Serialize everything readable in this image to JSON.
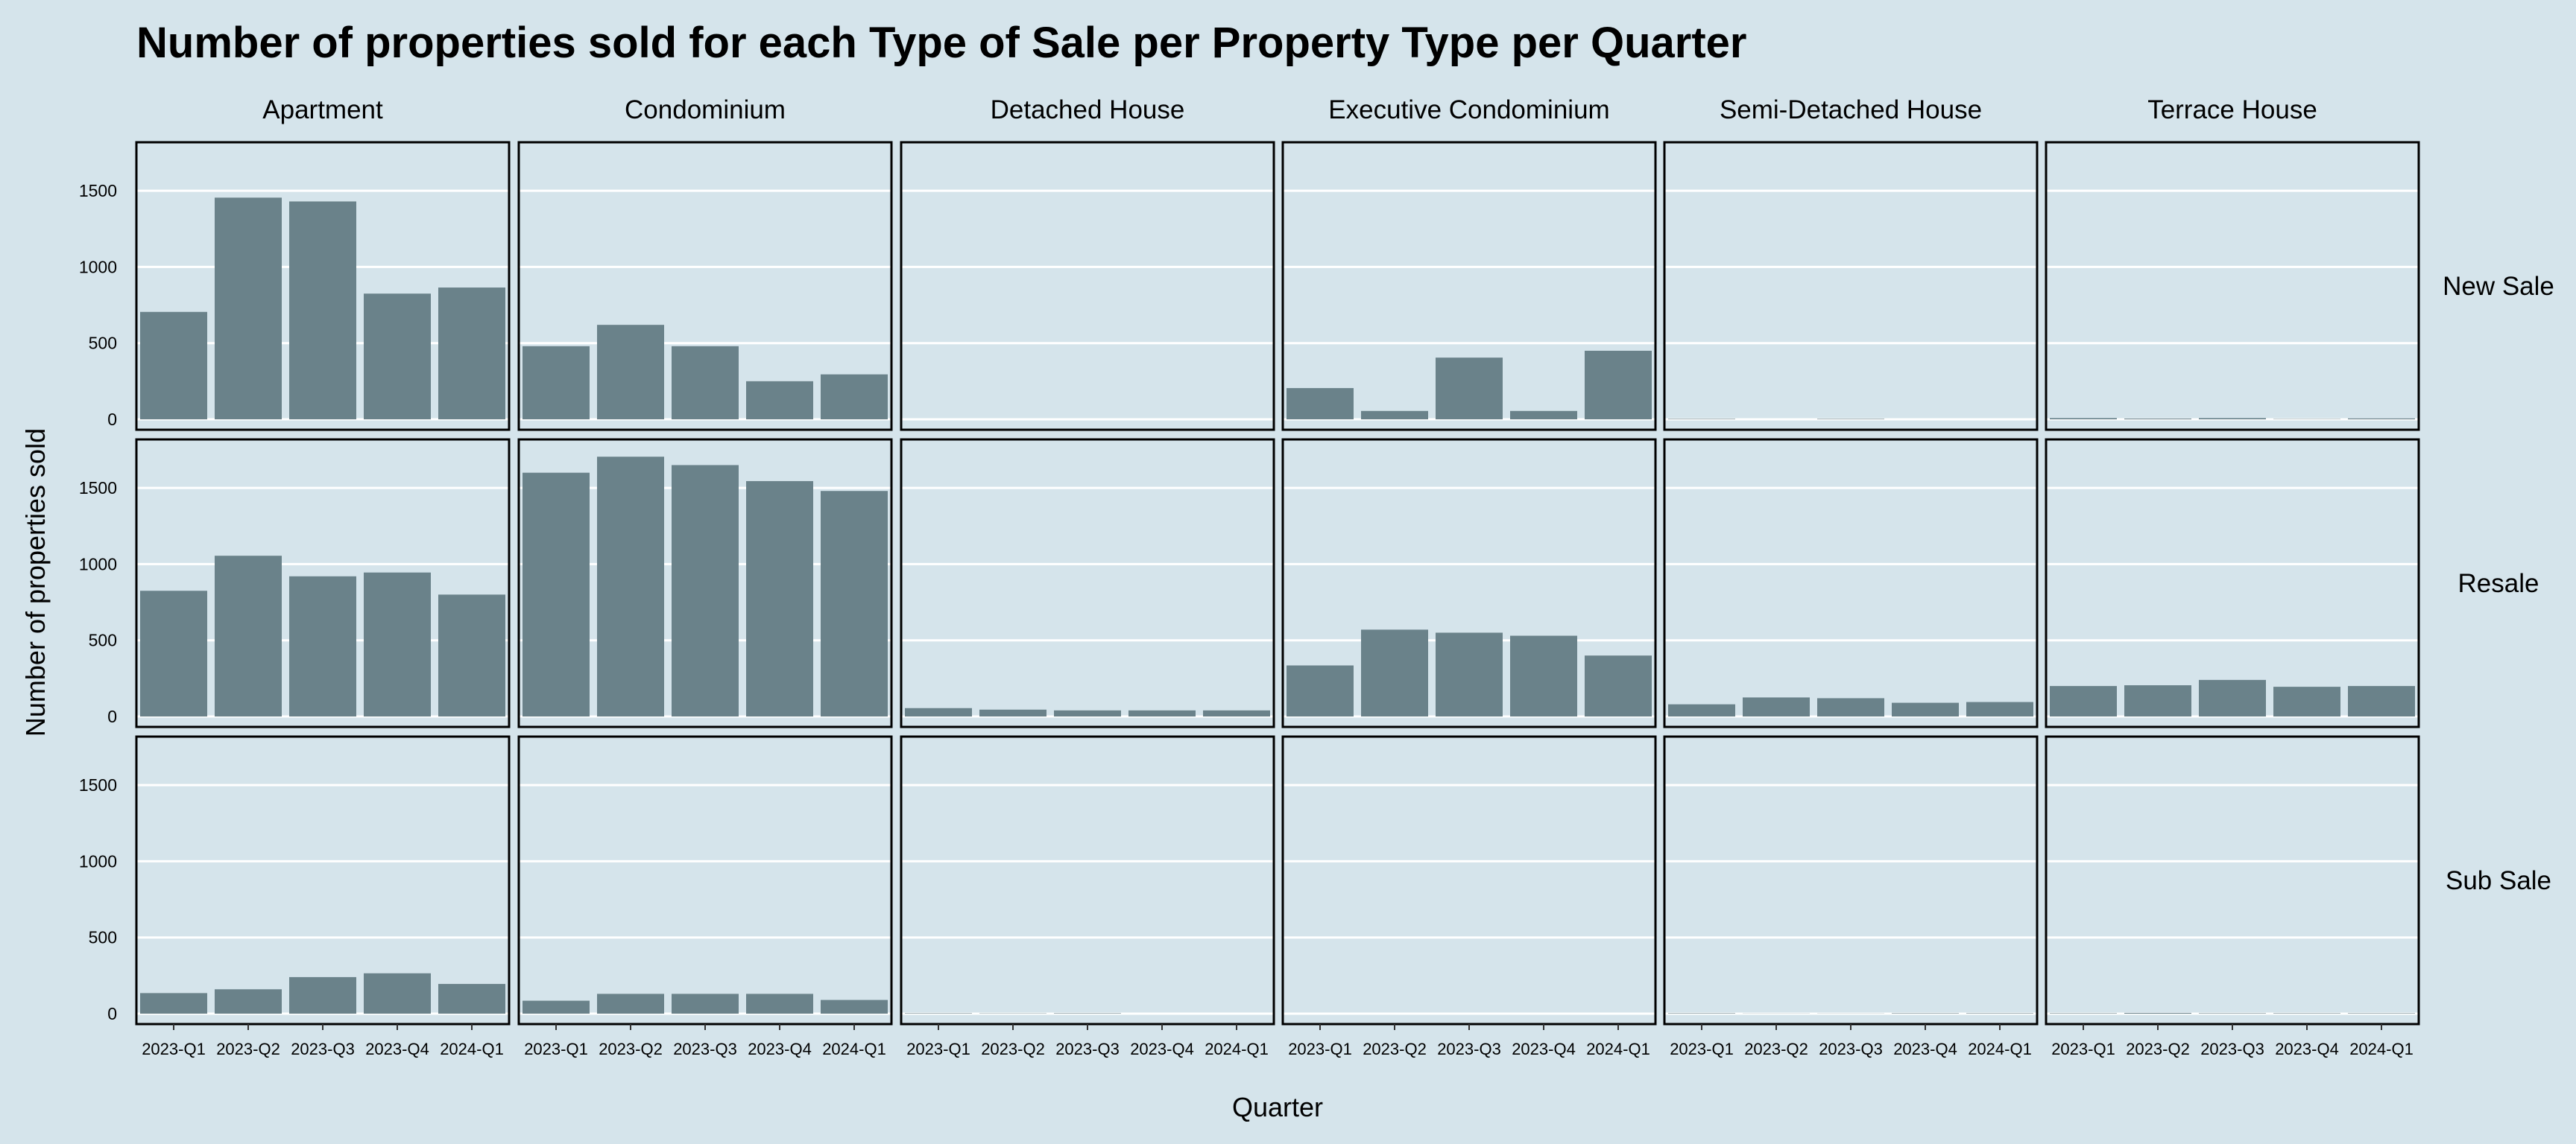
{
  "chart_data": {
    "type": "bar",
    "title": "Number of properties sold for each Type of Sale per Property Type per Quarter",
    "xlabel": "Quarter",
    "ylabel": "Number of properties sold",
    "ylim": [
      0,
      1750
    ],
    "yticks": [
      0,
      500,
      1000,
      1500
    ],
    "grid": true,
    "colors": {
      "background": "#d5e4eb",
      "bar": "#6a828a",
      "grid": "#ffffff",
      "border": "#000000"
    },
    "categories": [
      "2023-Q1",
      "2023-Q2",
      "2023-Q3",
      "2023-Q4",
      "2024-Q1"
    ],
    "columns": [
      "Apartment",
      "Condominium",
      "Detached House",
      "Executive Condominium",
      "Semi-Detached House",
      "Terrace House"
    ],
    "rows": [
      "New Sale",
      "Resale",
      "Sub Sale"
    ],
    "panels": [
      {
        "row": "New Sale",
        "column": "Apartment",
        "values": [
          705,
          1455,
          1430,
          825,
          865
        ]
      },
      {
        "row": "New Sale",
        "column": "Condominium",
        "values": [
          480,
          620,
          480,
          250,
          295
        ]
      },
      {
        "row": "New Sale",
        "column": "Detached House",
        "values": [
          0,
          0,
          0,
          0,
          0
        ]
      },
      {
        "row": "New Sale",
        "column": "Executive Condominium",
        "values": [
          205,
          55,
          405,
          55,
          450
        ]
      },
      {
        "row": "New Sale",
        "column": "Semi-Detached House",
        "values": [
          3,
          0,
          3,
          0,
          0
        ]
      },
      {
        "row": "New Sale",
        "column": "Terrace House",
        "values": [
          8,
          5,
          8,
          2,
          6
        ]
      },
      {
        "row": "Resale",
        "column": "Apartment",
        "values": [
          825,
          1055,
          920,
          945,
          800
        ]
      },
      {
        "row": "Resale",
        "column": "Condominium",
        "values": [
          1600,
          1705,
          1650,
          1545,
          1480
        ]
      },
      {
        "row": "Resale",
        "column": "Detached House",
        "values": [
          55,
          45,
          40,
          40,
          40
        ]
      },
      {
        "row": "Resale",
        "column": "Executive Condominium",
        "values": [
          335,
          570,
          550,
          530,
          400
        ]
      },
      {
        "row": "Resale",
        "column": "Semi-Detached House",
        "values": [
          80,
          125,
          120,
          90,
          95
        ]
      },
      {
        "row": "Resale",
        "column": "Terrace House",
        "values": [
          200,
          205,
          240,
          195,
          200
        ]
      },
      {
        "row": "Sub Sale",
        "column": "Apartment",
        "values": [
          135,
          160,
          240,
          265,
          195
        ]
      },
      {
        "row": "Sub Sale",
        "column": "Condominium",
        "values": [
          85,
          130,
          130,
          130,
          90
        ]
      },
      {
        "row": "Sub Sale",
        "column": "Detached House",
        "values": [
          3,
          2,
          3,
          0,
          0
        ]
      },
      {
        "row": "Sub Sale",
        "column": "Executive Condominium",
        "values": [
          0,
          0,
          0,
          0,
          0
        ]
      },
      {
        "row": "Sub Sale",
        "column": "Semi-Detached House",
        "values": [
          3,
          1,
          1,
          3,
          3
        ]
      },
      {
        "row": "Sub Sale",
        "column": "Terrace House",
        "values": [
          3,
          5,
          3,
          3,
          3
        ]
      }
    ]
  }
}
